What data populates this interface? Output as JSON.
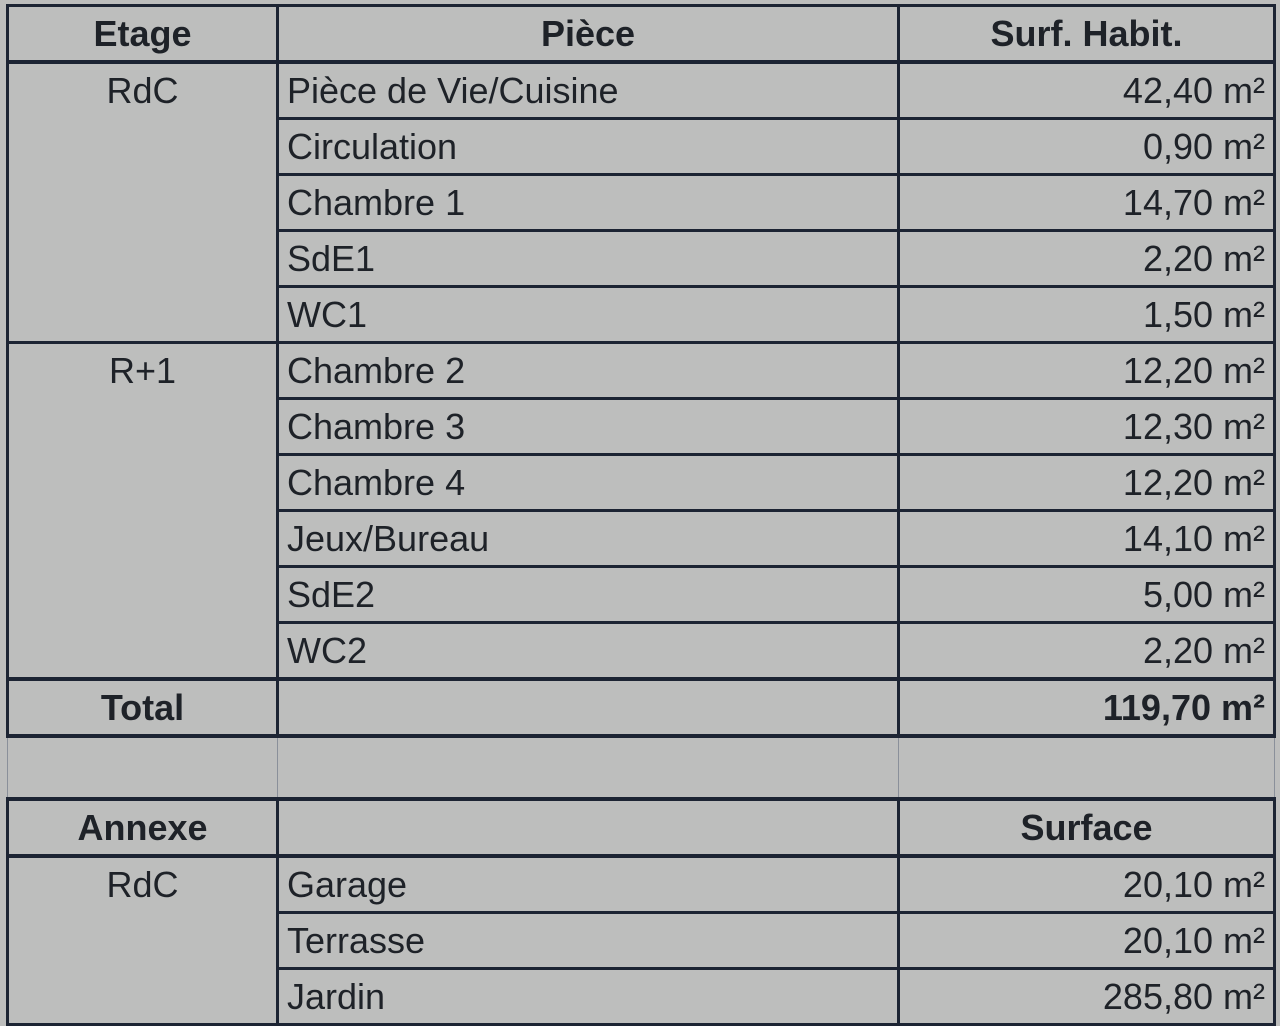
{
  "main": {
    "headers": {
      "etage": "Etage",
      "piece": "Pièce",
      "surface": "Surf. Habit."
    },
    "groups": [
      {
        "etage": "RdC",
        "rows": [
          {
            "piece": "Pièce de Vie/Cuisine",
            "surface": "42,40 m²"
          },
          {
            "piece": "Circulation",
            "surface": "0,90 m²"
          },
          {
            "piece": "Chambre 1",
            "surface": "14,70 m²"
          },
          {
            "piece": "SdE1",
            "surface": "2,20 m²"
          },
          {
            "piece": "WC1",
            "surface": "1,50 m²"
          }
        ]
      },
      {
        "etage": "R+1",
        "rows": [
          {
            "piece": "Chambre 2",
            "surface": "12,20 m²"
          },
          {
            "piece": "Chambre 3",
            "surface": "12,30 m²"
          },
          {
            "piece": "Chambre 4",
            "surface": "12,20 m²"
          },
          {
            "piece": "Jeux/Bureau",
            "surface": "14,10 m²"
          },
          {
            "piece": "SdE2",
            "surface": "5,00 m²"
          },
          {
            "piece": "WC2",
            "surface": "2,20 m²"
          }
        ]
      }
    ],
    "total": {
      "label": "Total",
      "value": "119,70 m²"
    }
  },
  "annexe": {
    "headers": {
      "annexe": "Annexe",
      "surface": "Surface"
    },
    "groups": [
      {
        "etage": "RdC",
        "rows": [
          {
            "piece": "Garage",
            "surface": "20,10 m²"
          },
          {
            "piece": "Terrasse",
            "surface": "20,10 m²"
          },
          {
            "piece": "Jardin",
            "surface": "285,80 m²"
          }
        ]
      }
    ]
  }
}
